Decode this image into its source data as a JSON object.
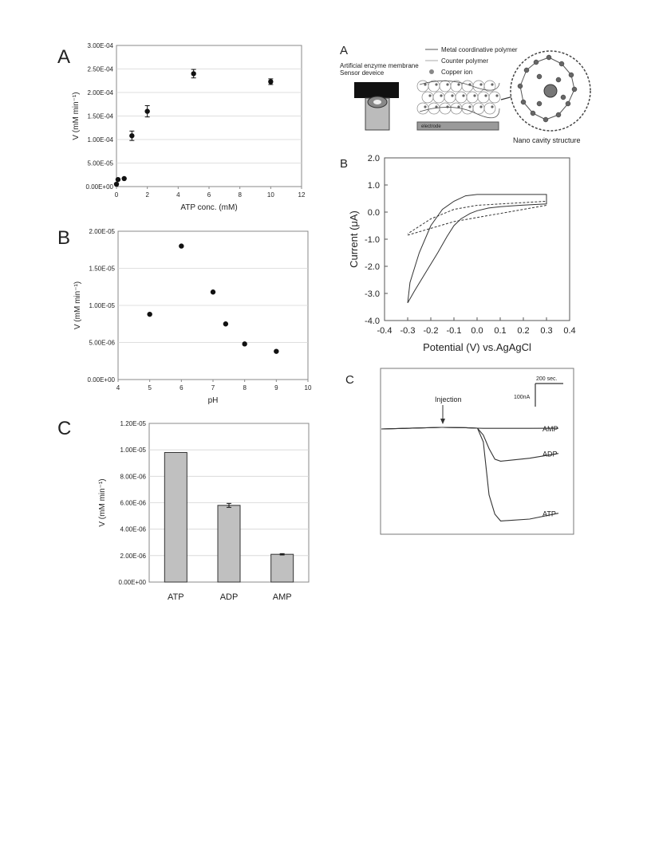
{
  "chart_data": [
    {
      "panel": "A",
      "type": "scatter",
      "xlabel": "ATP conc. (mM)",
      "ylabel": "V (mM min⁻¹)",
      "xlim": [
        0,
        12
      ],
      "ylim": [
        0,
        0.0003
      ],
      "xticks": [
        "0",
        "2",
        "4",
        "6",
        "8",
        "10",
        "12"
      ],
      "yticks": [
        "0.00E+00",
        "5.00E-05",
        "1.00E-04",
        "1.50E-04",
        "2.00E-04",
        "2.50E-04",
        "3.00E-04"
      ],
      "x": [
        0,
        0.1,
        0.5,
        1,
        2,
        5,
        10
      ],
      "y": [
        5e-06,
        1.5e-05,
        1.7e-05,
        0.000108,
        0.00016,
        0.00024,
        0.000223
      ],
      "yerr": [
        0,
        0,
        0,
        1e-05,
        1.2e-05,
        9e-06,
        6e-06
      ],
      "grid": true
    },
    {
      "panel": "B",
      "type": "scatter",
      "xlabel": "pH",
      "ylabel": "V (mM min⁻¹)",
      "xlim": [
        4,
        10
      ],
      "ylim": [
        0,
        2e-05
      ],
      "xticks": [
        "4",
        "5",
        "6",
        "7",
        "8",
        "9",
        "10"
      ],
      "yticks": [
        "0.00E+00",
        "5.00E-06",
        "1.00E-05",
        "1.50E-05",
        "2.00E-05"
      ],
      "x": [
        5,
        6,
        7,
        7.4,
        8,
        9
      ],
      "y": [
        8.8e-06,
        1.8e-05,
        1.18e-05,
        7.5e-06,
        4.8e-06,
        3.8e-06
      ],
      "grid": true
    },
    {
      "panel": "C",
      "type": "bar",
      "ylabel": "V (mM min⁻¹)",
      "categories": [
        "ATP",
        "ADP",
        "AMP"
      ],
      "values": [
        9.8e-06,
        5.8e-06,
        2.1e-06
      ],
      "yerr": [
        0,
        1.5e-07,
        5e-08
      ],
      "ylim": [
        0,
        1.2e-05
      ],
      "yticks": [
        "0.00E+00",
        "2.00E-06",
        "4.00E-06",
        "6.00E-06",
        "8.00E-06",
        "1.00E-05",
        "1.20E-05"
      ],
      "grid": true,
      "bar_color": "#c0c0c0"
    },
    {
      "panel": "B",
      "type": "line",
      "xlabel": "Potential (V) vs.AgAgCl",
      "ylabel": "Current (μA)",
      "xlim": [
        -0.4,
        0.4
      ],
      "ylim": [
        -4.0,
        2.0
      ],
      "xticks": [
        "-0.4",
        "-0.3",
        "-0.2",
        "-0.1",
        "0.0",
        "0.1",
        "0.2",
        "0.3",
        "0.4"
      ],
      "yticks": [
        "-4.0",
        "-3.0",
        "-2.0",
        "-1.0",
        "0.0",
        "1.0",
        "2.0"
      ],
      "series": [
        {
          "style": "solid",
          "x": [
            -0.3,
            -0.27,
            -0.22,
            -0.17,
            -0.13,
            -0.1,
            -0.07,
            -0.03,
            0.0,
            0.05,
            0.1,
            0.2,
            0.3,
            0.3,
            0.2,
            0.1,
            0.05,
            0.0,
            -0.05,
            -0.1,
            -0.15,
            -0.2,
            -0.25,
            -0.29,
            -0.3
          ],
          "y": [
            -3.35,
            -2.9,
            -2.2,
            -1.5,
            -0.9,
            -0.5,
            -0.25,
            -0.05,
            0.05,
            0.15,
            0.2,
            0.26,
            0.3,
            0.65,
            0.65,
            0.65,
            0.65,
            0.65,
            0.6,
            0.4,
            0.1,
            -0.5,
            -1.5,
            -2.6,
            -3.35
          ]
        },
        {
          "style": "dashed",
          "x": [
            -0.3,
            -0.2,
            -0.1,
            0.0,
            0.1,
            0.2,
            0.3,
            0.3,
            0.2,
            0.1,
            0.0,
            -0.1,
            -0.2,
            -0.3
          ],
          "y": [
            -0.85,
            -0.6,
            -0.35,
            -0.2,
            -0.05,
            0.1,
            0.25,
            0.4,
            0.35,
            0.3,
            0.25,
            0.1,
            -0.25,
            -0.8
          ]
        }
      ],
      "grid": false
    },
    {
      "panel": "C",
      "type": "line",
      "series": [
        {
          "name": "AMP",
          "x": [
            0,
            40,
            60,
            70,
            100,
            150,
            200
          ],
          "y": [
            0,
            -0.3,
            -0.8,
            -1.0,
            -1.0,
            -1.0,
            -0.9
          ]
        },
        {
          "name": "ADP",
          "x": [
            0,
            40,
            60,
            70,
            80,
            90,
            100,
            150,
            200
          ],
          "y": [
            0,
            -0.3,
            -0.8,
            -8,
            -22,
            -33,
            -35,
            -32,
            -27
          ]
        },
        {
          "name": "ATP",
          "x": [
            0,
            40,
            60,
            70,
            80,
            90,
            100,
            150,
            200
          ],
          "y": [
            0,
            -0.3,
            -0.8,
            -15,
            -70,
            -90,
            -97,
            -95,
            -89
          ]
        }
      ],
      "annotations": [
        "Injection"
      ],
      "scale_bar": {
        "time": "200 sec.",
        "current": "100nA"
      }
    }
  ],
  "labels": {
    "left_A": "A",
    "left_B": "B",
    "left_C": "C",
    "right_A": "A",
    "right_B": "B",
    "right_C": "C"
  },
  "diagram": {
    "legend_metal": "Metal coordinative polymer",
    "legend_counter": "Counter polymer",
    "legend_copper": "Copper ion",
    "membrane_title_1": "Artificial enzyme membrane",
    "membrane_title_2": "Sensor deveice",
    "electrode_label": "electrode",
    "nano_label": "Nano cavity structure"
  }
}
